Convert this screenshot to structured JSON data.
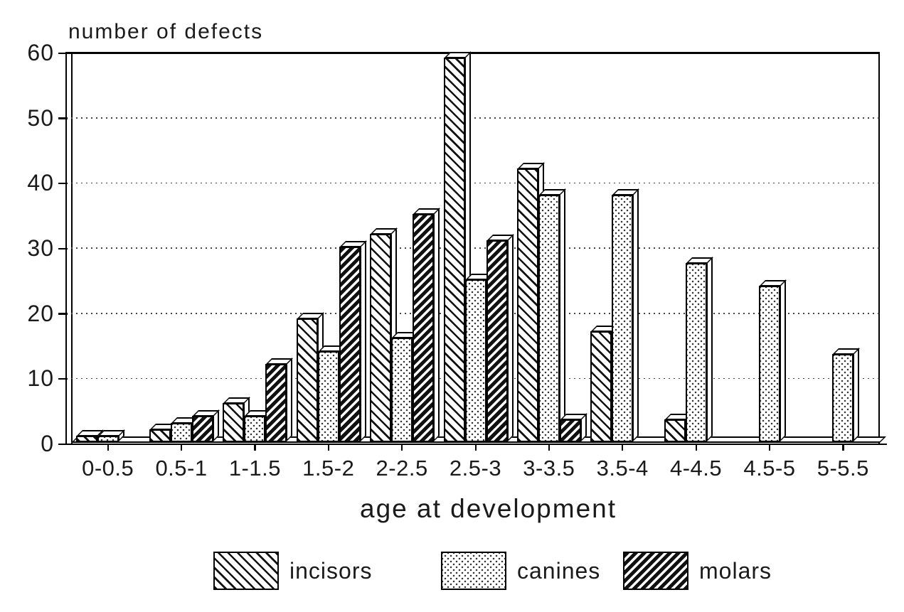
{
  "figure": {
    "background": "#ffffff",
    "ink": "#111111"
  },
  "chart_data": {
    "type": "bar",
    "title": "",
    "ylabel": "number of defects",
    "xlabel": "age at development",
    "categories": [
      "0-0.5",
      "0.5-1",
      "1-1.5",
      "1.5-2",
      "2-2.5",
      "2.5-3",
      "3-3.5",
      "3.5-4",
      "4-4.5",
      "4.5-5",
      "5-5.5"
    ],
    "series": [
      {
        "name": "incisors",
        "pattern": "hatch-light",
        "values": [
          1,
          2,
          6,
          19,
          32,
          59,
          42,
          17,
          3.5,
          0,
          0
        ]
      },
      {
        "name": "canines",
        "pattern": "stipple",
        "values": [
          1,
          3,
          4,
          14,
          16,
          25,
          38,
          38,
          27.5,
          24,
          13.5
        ]
      },
      {
        "name": "molars",
        "pattern": "hatch-dark",
        "values": [
          0,
          4,
          12,
          30,
          35,
          31,
          3.5,
          0,
          0,
          0,
          0
        ]
      }
    ],
    "ylim": [
      0,
      60
    ],
    "yticks": [
      0,
      10,
      20,
      30,
      40,
      50,
      60
    ],
    "grid": "horizontal-dotted",
    "legend_position": "bottom",
    "style": "monochrome 3d-effect hatch-pattern bar chart"
  }
}
